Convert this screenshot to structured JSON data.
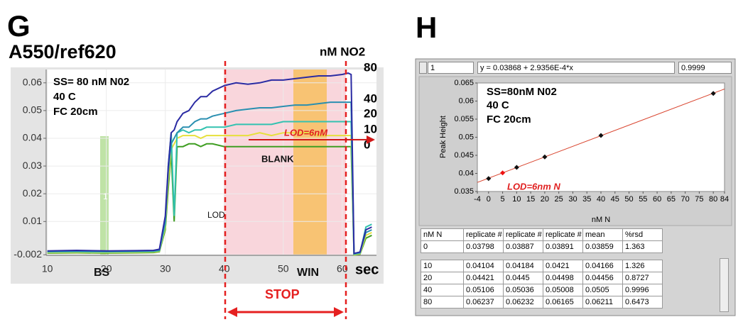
{
  "chart_data": [
    {
      "type": "line",
      "panel": "G",
      "title": "A550/ref620",
      "xlabel": "sec",
      "legend_title": "nM NO2",
      "grid": true,
      "x": [
        10,
        15,
        20,
        25,
        28,
        29,
        30,
        30.5,
        31,
        31.5,
        32,
        33,
        34,
        35,
        36,
        37,
        38,
        40,
        42,
        44,
        46,
        48,
        50,
        52,
        54,
        56,
        58,
        60,
        61,
        61.5,
        62,
        63,
        64,
        65
      ],
      "xlim": [
        9.8,
        65.8
      ],
      "xticks": [
        10,
        20,
        30,
        40,
        50,
        60
      ],
      "ylim": [
        -0.0022,
        0.0648
      ],
      "yticks": [
        -0.002,
        0.01,
        0.02,
        0.03,
        0.04,
        0.05,
        0.06
      ],
      "series": [
        {
          "name": "80",
          "color": "#2b2ba3",
          "values": [
            -0.0006,
            -0.0004,
            -0.0006,
            -0.0005,
            -0.0004,
            0.0,
            0.012,
            0.03,
            0.042,
            0.043,
            0.046,
            0.049,
            0.05,
            0.053,
            0.055,
            0.055,
            0.057,
            0.059,
            0.06,
            0.0595,
            0.06,
            0.061,
            0.061,
            0.0615,
            0.062,
            0.0625,
            0.0625,
            0.063,
            0.0635,
            0.063,
            -0.0015,
            -0.001,
            0.007,
            0.008
          ]
        },
        {
          "name": "40",
          "color": "#2a8fb0",
          "values": [
            -0.0008,
            -0.0007,
            -0.0008,
            -0.0007,
            -0.0006,
            -0.0003,
            0.01,
            0.028,
            0.038,
            0.04,
            0.042,
            0.044,
            0.044,
            0.046,
            0.047,
            0.047,
            0.048,
            0.049,
            0.05,
            0.0505,
            0.051,
            0.051,
            0.0515,
            0.052,
            0.052,
            0.0525,
            0.053,
            0.053,
            0.053,
            0.053,
            -0.0017,
            -0.0012,
            0.006,
            0.007
          ]
        },
        {
          "name": "20",
          "color": "#33c2b0",
          "values": [
            -0.001,
            -0.0009,
            -0.001,
            -0.0009,
            -0.0008,
            -0.0005,
            0.009,
            0.03,
            0.042,
            0.012,
            0.042,
            0.043,
            0.042,
            0.043,
            0.043,
            0.044,
            0.044,
            0.044,
            0.045,
            0.045,
            0.045,
            0.045,
            0.046,
            0.046,
            0.046,
            0.046,
            0.046,
            0.046,
            0.046,
            0.046,
            -0.0018,
            -0.0014,
            0.008,
            0.009
          ]
        },
        {
          "name": "10",
          "color": "#e6e03c",
          "values": [
            -0.0012,
            -0.0011,
            -0.0012,
            -0.0011,
            -0.001,
            -0.0007,
            0.008,
            0.025,
            0.036,
            0.038,
            0.04,
            0.041,
            0.041,
            0.041,
            0.04,
            0.041,
            0.041,
            0.041,
            0.041,
            0.041,
            0.042,
            0.041,
            0.042,
            0.042,
            0.042,
            0.041,
            0.041,
            0.041,
            0.041,
            0.041,
            -0.002,
            -0.0016,
            0.005,
            0.006
          ]
        },
        {
          "name": "0",
          "color": "#3f9e22",
          "values": [
            -0.0014,
            -0.0013,
            -0.0014,
            -0.0013,
            -0.0012,
            -0.0009,
            0.007,
            0.022,
            0.035,
            0.01,
            0.037,
            0.037,
            0.038,
            0.038,
            0.037,
            0.038,
            0.038,
            0.037,
            0.037,
            0.037,
            0.037,
            0.037,
            0.037,
            0.037,
            0.037,
            0.037,
            0.037,
            0.037,
            0.037,
            0.037,
            -0.0021,
            -0.0018,
            0.004,
            0.005
          ]
        }
      ],
      "annotations": [
        "SS= 80 nM N02",
        "40 C",
        "FC 20cm",
        "LOD=6nM",
        "BLANK",
        "LOD",
        "1",
        "BS",
        "WIN",
        "STOP"
      ]
    },
    {
      "type": "scatter",
      "panel": "H",
      "xlabel": "nM N",
      "ylabel": "Peak Height",
      "index": 1,
      "equation": "y = 0.03868 + 2.9356E-4*x",
      "r_squared": 0.9999,
      "xlim": [
        -4,
        84
      ],
      "xticks": [
        -4,
        0,
        5,
        10,
        15,
        20,
        25,
        30,
        35,
        40,
        45,
        50,
        55,
        60,
        65,
        70,
        75,
        80,
        84
      ],
      "ylim": [
        0.035,
        0.065
      ],
      "yticks": [
        0.035,
        0.04,
        0.045,
        0.05,
        0.055,
        0.06,
        0.065
      ],
      "series": [
        {
          "kind": "line",
          "color": "#d9442e",
          "x": [
            -4,
            84
          ],
          "values": [
            0.03751,
            0.06334
          ]
        },
        {
          "kind": "points",
          "color": "#111111",
          "x": [
            0,
            10,
            20,
            40,
            80
          ],
          "values": [
            0.03859,
            0.04166,
            0.04456,
            0.0505,
            0.06211
          ]
        },
        {
          "kind": "points",
          "color": "#ee1111",
          "x": [
            5
          ],
          "values": [
            0.04015
          ]
        }
      ],
      "annotations": [
        "SS=80nM N02",
        "40 C",
        "FC 20cm",
        "LOD=6nm N"
      ]
    }
  ],
  "table": {
    "header": [
      "nM N",
      "replicate #",
      "replicate #",
      "replicate #",
      "mean",
      "%rsd"
    ],
    "rows": [
      [
        "0",
        "0.03798",
        "0.03887",
        "0.03891",
        "0.03859",
        "1.363"
      ],
      [
        "10",
        "0.04104",
        "0.04184",
        "0.0421",
        "0.04166",
        "1.326"
      ],
      [
        "20",
        "0.04421",
        "0.0445",
        "0.04498",
        "0.04456",
        "0.8727"
      ],
      [
        "40",
        "0.05106",
        "0.05036",
        "0.05008",
        "0.0505",
        "0.9996"
      ],
      [
        "80",
        "0.06237",
        "0.06232",
        "0.06165",
        "0.06211",
        "0.6473"
      ]
    ]
  }
}
